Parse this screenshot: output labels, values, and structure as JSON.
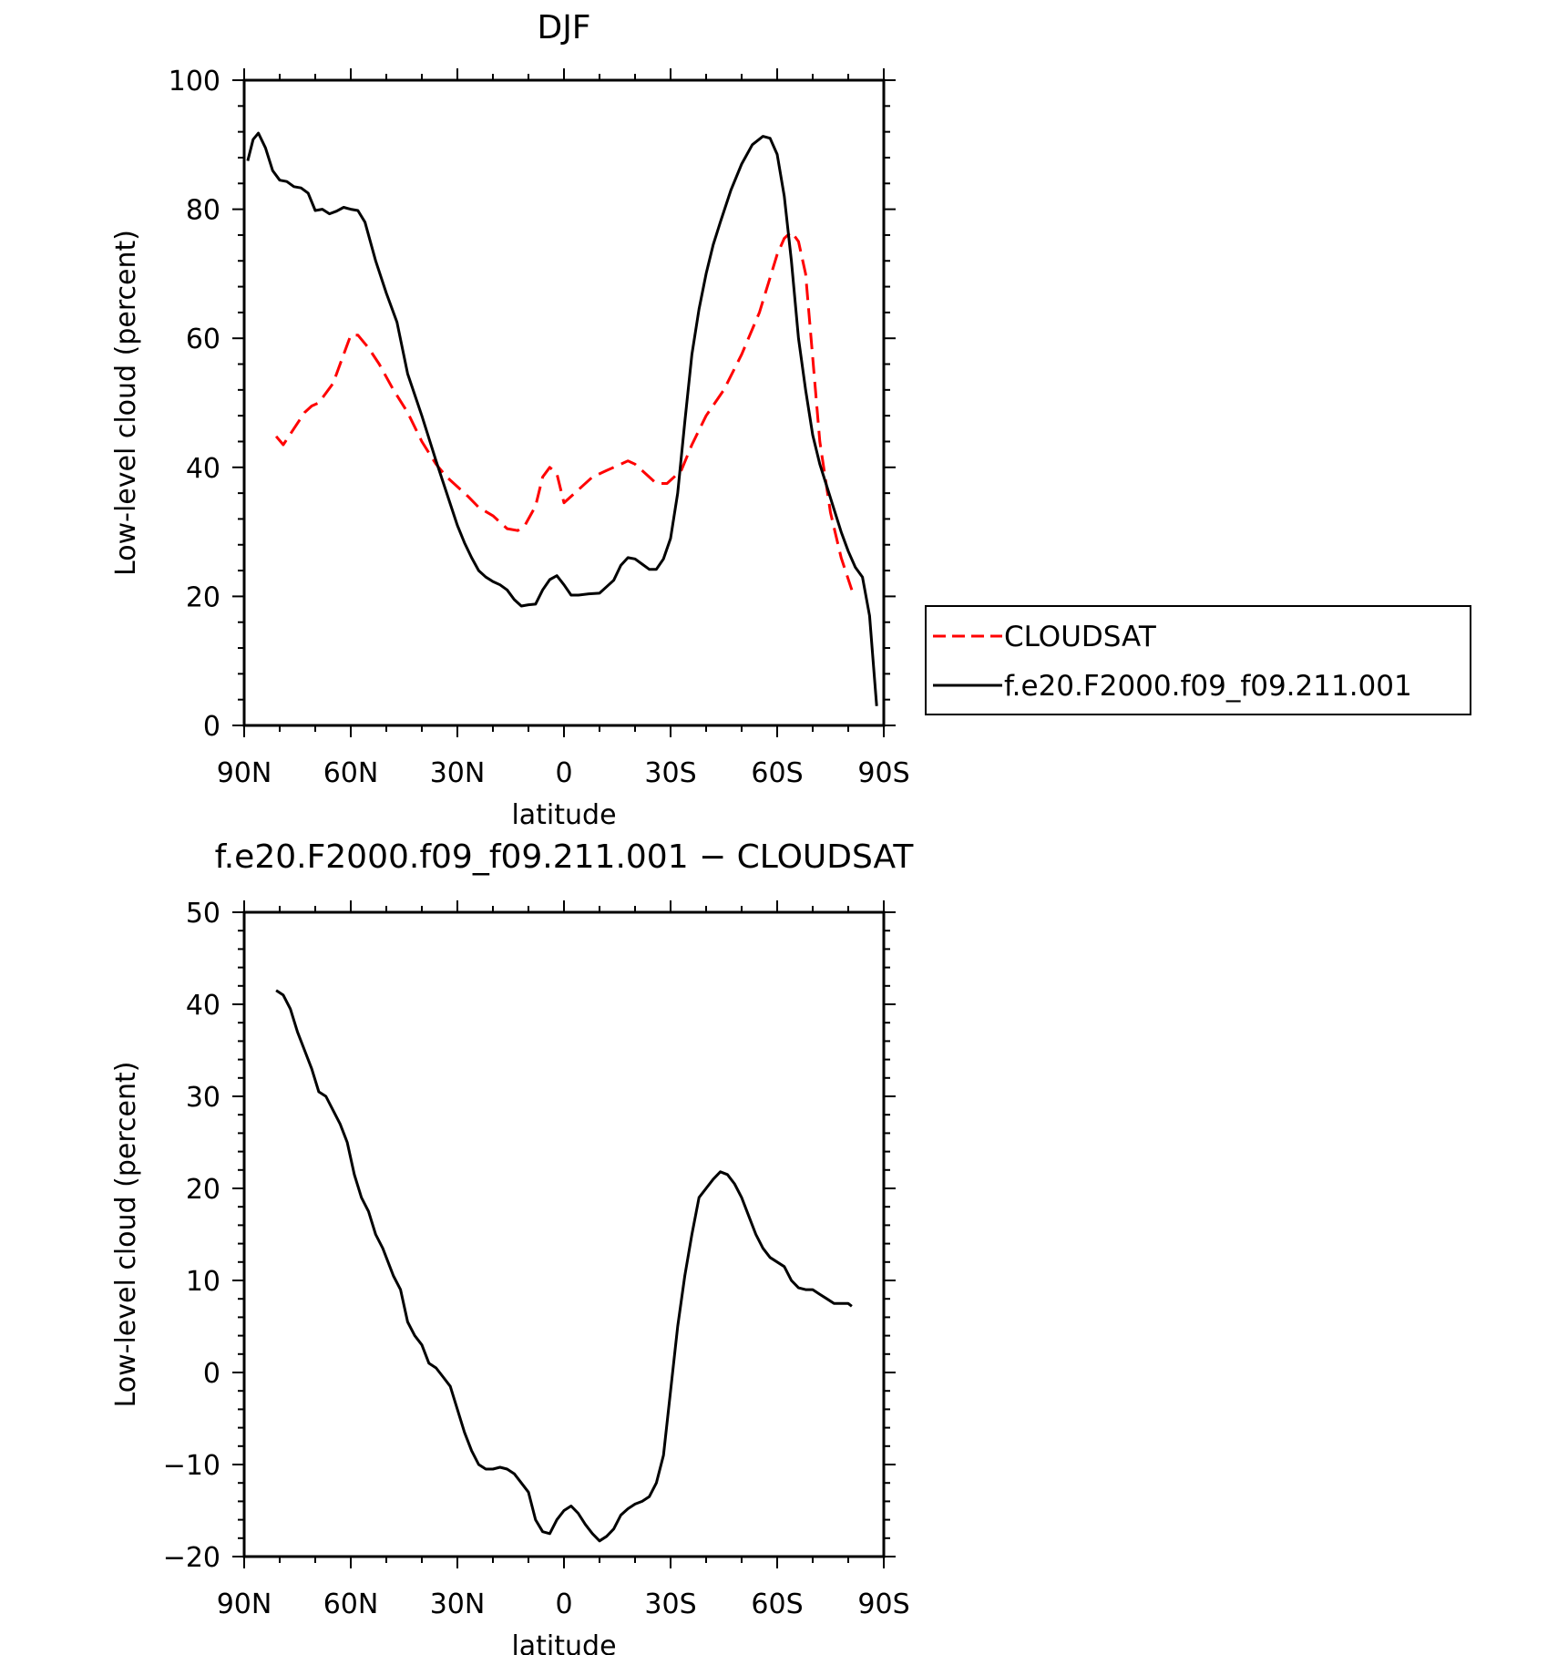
{
  "chart_data": [
    {
      "type": "line",
      "title": "DJF",
      "xlabel": "latitude",
      "ylabel": "Low-level cloud (percent)",
      "xlim": [
        -90,
        90
      ],
      "ylim": [
        0,
        100
      ],
      "xticks": [
        {
          "value": -90,
          "label": "90N"
        },
        {
          "value": -60,
          "label": "60N"
        },
        {
          "value": -30,
          "label": "30N"
        },
        {
          "value": 0,
          "label": "0"
        },
        {
          "value": 30,
          "label": "30S"
        },
        {
          "value": 60,
          "label": "60S"
        },
        {
          "value": 90,
          "label": "90S"
        }
      ],
      "yticks": [
        0,
        20,
        40,
        60,
        80,
        100
      ],
      "legend_position": "right",
      "series": [
        {
          "name": "CLOUDSAT",
          "color": "#ff0000",
          "dash": "dashed",
          "x": [
            -81,
            -79,
            -76,
            -73,
            -71,
            -69,
            -67,
            -65,
            -62,
            -60,
            -58,
            -55,
            -52,
            -48,
            -44,
            -40,
            -36,
            -33,
            -30,
            -27,
            -24,
            -20,
            -16,
            -13,
            -11,
            -8,
            -6,
            -4,
            -2,
            0,
            4,
            8,
            12,
            16,
            18,
            20,
            23,
            26,
            29,
            33,
            36,
            40,
            45,
            50,
            55,
            60,
            62,
            64,
            66,
            68,
            70,
            72,
            75,
            78,
            81
          ],
          "y": [
            44.8,
            43.5,
            46.0,
            48.5,
            49.5,
            50.0,
            51.5,
            53.0,
            57.5,
            60.5,
            60.5,
            58.5,
            56.0,
            52.0,
            48.5,
            44.0,
            40.5,
            38.5,
            37.0,
            35.5,
            33.8,
            32.5,
            30.5,
            30.2,
            31.0,
            34.0,
            38.5,
            40.0,
            39.0,
            34.5,
            36.5,
            38.5,
            39.5,
            40.5,
            41.0,
            40.5,
            39.0,
            37.5,
            37.5,
            39.5,
            43.5,
            48.0,
            52.0,
            57.5,
            64.0,
            73.0,
            75.5,
            76.5,
            75.0,
            70.0,
            57.0,
            44.0,
            33.0,
            26.0,
            21.0
          ]
        },
        {
          "name": "f.e20.F2000.f09_f09.211.001",
          "color": "#000000",
          "dash": "solid",
          "x": [
            -89,
            -87.5,
            -86,
            -84,
            -82,
            -80,
            -78,
            -76,
            -74,
            -72,
            -70,
            -68,
            -66,
            -64,
            -62,
            -60,
            -58,
            -56,
            -53,
            -50,
            -47,
            -44,
            -40,
            -36,
            -33,
            -30,
            -28,
            -26,
            -24,
            -22,
            -20,
            -18,
            -16,
            -14,
            -12,
            -10,
            -8,
            -6,
            -4,
            -2,
            0,
            2,
            4,
            7,
            10,
            12,
            14,
            16,
            18,
            20,
            22,
            24,
            26,
            28,
            30,
            32,
            34,
            36,
            38,
            40,
            42,
            44,
            47,
            50,
            53,
            56,
            58,
            60,
            62,
            64,
            66,
            68,
            70,
            72,
            74,
            76,
            78,
            80,
            82,
            84,
            86,
            88
          ],
          "y": [
            87.5,
            90.8,
            91.8,
            89.5,
            86.0,
            84.5,
            84.3,
            83.5,
            83.3,
            82.5,
            79.8,
            80.0,
            79.3,
            79.7,
            80.3,
            80.0,
            79.8,
            78.0,
            72.0,
            67.0,
            62.5,
            54.5,
            48.0,
            41.0,
            36.0,
            31.0,
            28.3,
            26.0,
            24.0,
            23.0,
            22.3,
            21.8,
            21.0,
            19.5,
            18.5,
            18.7,
            18.8,
            21.0,
            22.6,
            23.2,
            21.8,
            20.2,
            20.2,
            20.4,
            20.5,
            21.5,
            22.5,
            24.8,
            26.0,
            25.8,
            25.0,
            24.2,
            24.2,
            25.8,
            29.0,
            36.0,
            47.0,
            57.5,
            64.5,
            70.0,
            74.5,
            78.0,
            83.0,
            87.0,
            90.0,
            91.3,
            91.0,
            88.5,
            82.0,
            72.0,
            60.0,
            52.0,
            45.0,
            40.5,
            37.0,
            33.5,
            30.0,
            27.0,
            24.5,
            23.0,
            17.0,
            3.0
          ]
        }
      ]
    },
    {
      "type": "line",
      "title": "f.e20.F2000.f09_f09.211.001 − CLOUDSAT",
      "xlabel": "latitude",
      "ylabel": "Low-level cloud (percent)",
      "xlim": [
        -90,
        90
      ],
      "ylim": [
        -20,
        50
      ],
      "xticks": [
        {
          "value": -90,
          "label": "90N"
        },
        {
          "value": -60,
          "label": "60N"
        },
        {
          "value": -30,
          "label": "30N"
        },
        {
          "value": 0,
          "label": "0"
        },
        {
          "value": 30,
          "label": "30S"
        },
        {
          "value": 60,
          "label": "60S"
        },
        {
          "value": 90,
          "label": "90S"
        }
      ],
      "yticks": [
        {
          "value": -20,
          "label": "−20"
        },
        {
          "value": -10,
          "label": "−10"
        },
        {
          "value": 0,
          "label": "0"
        },
        {
          "value": 10,
          "label": "10"
        },
        {
          "value": 20,
          "label": "20"
        },
        {
          "value": 30,
          "label": "30"
        },
        {
          "value": 40,
          "label": "40"
        },
        {
          "value": 50,
          "label": "50"
        }
      ],
      "series": [
        {
          "color": "#000000",
          "dash": "solid",
          "x": [
            -81,
            -79,
            -77,
            -75,
            -73,
            -71,
            -69,
            -67,
            -65,
            -63,
            -61,
            -59,
            -57,
            -55,
            -53,
            -51,
            -48,
            -46,
            -44,
            -42,
            -40,
            -38,
            -36,
            -34,
            -32,
            -30,
            -28,
            -26,
            -24,
            -22,
            -20,
            -18,
            -16,
            -14,
            -12,
            -10,
            -8,
            -6,
            -4,
            -2,
            0,
            2,
            4,
            6,
            8,
            10,
            12,
            14,
            16,
            18,
            20,
            22,
            24,
            26,
            28,
            30,
            32,
            34,
            36,
            38,
            40,
            42,
            44,
            46,
            48,
            50,
            52,
            54,
            56,
            58,
            60,
            62,
            64,
            66,
            68,
            70,
            72,
            74,
            76,
            78,
            80,
            81
          ],
          "y": [
            41.5,
            41.0,
            39.5,
            37.0,
            35.0,
            33.0,
            30.5,
            30.0,
            28.5,
            27.0,
            25.0,
            21.5,
            19.0,
            17.5,
            15.0,
            13.5,
            10.5,
            9.0,
            5.5,
            4.0,
            3.0,
            1.0,
            0.5,
            -0.5,
            -1.5,
            -4.0,
            -6.5,
            -8.5,
            -10.0,
            -10.5,
            -10.5,
            -10.3,
            -10.5,
            -11.0,
            -12.0,
            -13.0,
            -16.0,
            -17.3,
            -17.5,
            -16.0,
            -15.0,
            -14.5,
            -15.3,
            -16.5,
            -17.5,
            -18.3,
            -17.8,
            -17.0,
            -15.5,
            -14.8,
            -14.3,
            -14.0,
            -13.5,
            -12.0,
            -9.0,
            -2.0,
            5.0,
            10.5,
            15.0,
            19.0,
            20.0,
            21.0,
            21.8,
            21.5,
            20.5,
            19.0,
            17.0,
            15.0,
            13.5,
            12.5,
            12.0,
            11.5,
            10.0,
            9.2,
            9.0,
            9.0,
            8.5,
            8.0,
            7.5,
            7.5,
            7.5,
            7.2
          ]
        }
      ]
    }
  ]
}
